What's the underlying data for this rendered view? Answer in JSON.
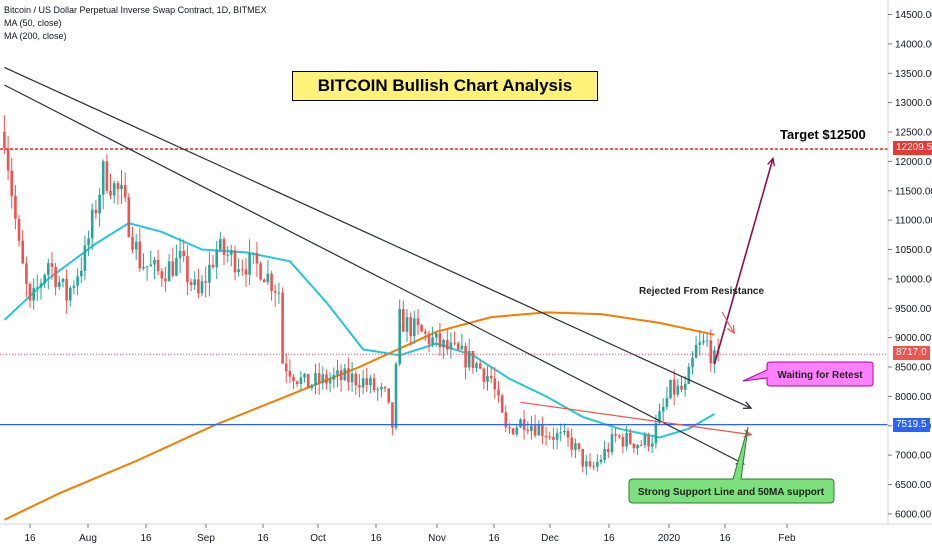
{
  "legend": {
    "symbol": "Bitcoin / US Dollar Perpetual Inverse Swap Contract, 1D, BITMEX",
    "ma50": "MA (50, close)",
    "ma200": "MA (200, close)"
  },
  "annotations": {
    "title": "BITCOIN Bullish Chart Analysis",
    "target": "Target $12500",
    "rejected": "Rejected From Resistance",
    "retest": "Waiting for Retest",
    "support": "Strong Support Line and 50MA support"
  },
  "price_tags": {
    "resistance": "12209.5",
    "last": "8717.0",
    "support": "7519.5"
  },
  "colors": {
    "up": "#26a69a",
    "down": "#ef5350",
    "ma50": "#26c6da",
    "ma200": "#f57c00",
    "resistance_line": "#e53935",
    "support_line": "#2962ff",
    "target_arrow": "#880e4f",
    "callout_pink": "#ff80ff",
    "callout_green": "#7ce07c"
  },
  "chart_data": {
    "type": "candlestick",
    "title": "BITCOIN Bullish Chart Analysis",
    "x_ticks": [
      "16",
      "Aug",
      "16",
      "Sep",
      "16",
      "Oct",
      "16",
      "Nov",
      "16",
      "Dec",
      "16",
      "2020",
      "16",
      "Feb"
    ],
    "y_ticks": [
      "14500.00",
      "14000.00",
      "13500.00",
      "13000.00",
      "12500.00",
      "12000.00",
      "11500.00",
      "11000.00",
      "10500.00",
      "10000.00",
      "9500.00",
      "9000.00",
      "8500.00",
      "8000.00",
      "7500.00",
      "7000.00",
      "6500.00",
      "6000.00"
    ],
    "ylim": [
      5850,
      14700
    ],
    "price_levels": {
      "resistance": 12209.5,
      "last": 8717.0,
      "support": 7519.5,
      "target": 12500
    },
    "close_path": [
      {
        "date": "2019-07-10",
        "close": 12500
      },
      {
        "date": "2019-07-14",
        "close": 10500
      },
      {
        "date": "2019-07-17",
        "close": 9500
      },
      {
        "date": "2019-07-22",
        "close": 10300
      },
      {
        "date": "2019-07-27",
        "close": 9700
      },
      {
        "date": "2019-08-01",
        "close": 10400
      },
      {
        "date": "2019-08-06",
        "close": 11800
      },
      {
        "date": "2019-08-11",
        "close": 11400
      },
      {
        "date": "2019-08-16",
        "close": 10300
      },
      {
        "date": "2019-08-21",
        "close": 10100
      },
      {
        "date": "2019-08-27",
        "close": 10300
      },
      {
        "date": "2019-09-01",
        "close": 9700
      },
      {
        "date": "2019-09-06",
        "close": 10500
      },
      {
        "date": "2019-09-12",
        "close": 10300
      },
      {
        "date": "2019-09-18",
        "close": 10200
      },
      {
        "date": "2019-09-23",
        "close": 9800
      },
      {
        "date": "2019-09-24",
        "close": 8600
      },
      {
        "date": "2019-09-30",
        "close": 8200
      },
      {
        "date": "2019-10-08",
        "close": 8300
      },
      {
        "date": "2019-10-15",
        "close": 8300
      },
      {
        "date": "2019-10-22",
        "close": 8000
      },
      {
        "date": "2019-10-24",
        "close": 7500
      },
      {
        "date": "2019-10-26",
        "close": 9300
      },
      {
        "date": "2019-10-31",
        "close": 9100
      },
      {
        "date": "2019-11-08",
        "close": 8800
      },
      {
        "date": "2019-11-15",
        "close": 8600
      },
      {
        "date": "2019-11-20",
        "close": 8300
      },
      {
        "date": "2019-11-24",
        "close": 7400
      },
      {
        "date": "2019-11-29",
        "close": 7600
      },
      {
        "date": "2019-12-05",
        "close": 7400
      },
      {
        "date": "2019-12-12",
        "close": 7200
      },
      {
        "date": "2019-12-17",
        "close": 6700
      },
      {
        "date": "2019-12-24",
        "close": 7300
      },
      {
        "date": "2019-12-31",
        "close": 7200
      },
      {
        "date": "2020-01-03",
        "close": 7300
      },
      {
        "date": "2020-01-08",
        "close": 8100
      },
      {
        "date": "2020-01-12",
        "close": 8100
      },
      {
        "date": "2020-01-15",
        "close": 8800
      },
      {
        "date": "2020-01-18",
        "close": 8900
      },
      {
        "date": "2020-01-20",
        "close": 8600
      },
      {
        "date": "2020-01-21",
        "close": 8717
      }
    ],
    "series": [
      {
        "name": "MA (50, close)",
        "values": [
          {
            "date": "2019-07-10",
            "value": 9300
          },
          {
            "date": "2019-07-22",
            "value": 10000
          },
          {
            "date": "2019-08-04",
            "value": 10600
          },
          {
            "date": "2019-08-13",
            "value": 10950
          },
          {
            "date": "2019-08-22",
            "value": 10800
          },
          {
            "date": "2019-09-02",
            "value": 10500
          },
          {
            "date": "2019-09-14",
            "value": 10450
          },
          {
            "date": "2019-09-26",
            "value": 10300
          },
          {
            "date": "2019-10-06",
            "value": 9600
          },
          {
            "date": "2019-10-16",
            "value": 8800
          },
          {
            "date": "2019-10-26",
            "value": 8700
          },
          {
            "date": "2019-11-05",
            "value": 8900
          },
          {
            "date": "2019-11-15",
            "value": 8700
          },
          {
            "date": "2019-11-25",
            "value": 8300
          },
          {
            "date": "2019-12-05",
            "value": 8000
          },
          {
            "date": "2019-12-15",
            "value": 7650
          },
          {
            "date": "2019-12-25",
            "value": 7450
          },
          {
            "date": "2020-01-05",
            "value": 7300
          },
          {
            "date": "2020-01-13",
            "value": 7450
          },
          {
            "date": "2020-01-20",
            "value": 7700
          }
        ]
      },
      {
        "name": "MA (200, close)",
        "values": [
          {
            "date": "2019-07-10",
            "value": 5900
          },
          {
            "date": "2019-07-25",
            "value": 6350
          },
          {
            "date": "2019-08-15",
            "value": 6900
          },
          {
            "date": "2019-09-05",
            "value": 7500
          },
          {
            "date": "2019-09-25",
            "value": 8000
          },
          {
            "date": "2019-10-15",
            "value": 8500
          },
          {
            "date": "2019-11-05",
            "value": 9100
          },
          {
            "date": "2019-11-20",
            "value": 9350
          },
          {
            "date": "2019-12-05",
            "value": 9430
          },
          {
            "date": "2019-12-20",
            "value": 9400
          },
          {
            "date": "2020-01-05",
            "value": 9250
          },
          {
            "date": "2020-01-20",
            "value": 9050
          }
        ]
      }
    ],
    "trendlines": [
      {
        "name": "upper-resistance",
        "from": {
          "date": "2019-07-10",
          "price": 13600
        },
        "to": {
          "date": "2020-01-30",
          "price": 7800
        }
      },
      {
        "name": "lower-resistance",
        "from": {
          "date": "2019-07-10",
          "price": 13300
        },
        "to": {
          "date": "2020-01-28",
          "price": 6850
        }
      },
      {
        "name": "red-channel",
        "from": {
          "date": "2019-11-28",
          "price": 7900
        },
        "to": {
          "date": "2020-01-30",
          "price": 7350
        }
      }
    ],
    "target_arrow": {
      "from": {
        "date": "2020-01-20",
        "price": 8550
      },
      "to": {
        "date": "2020-02-05",
        "price": 12050
      }
    },
    "grid": false,
    "legend_position": "top-left"
  }
}
